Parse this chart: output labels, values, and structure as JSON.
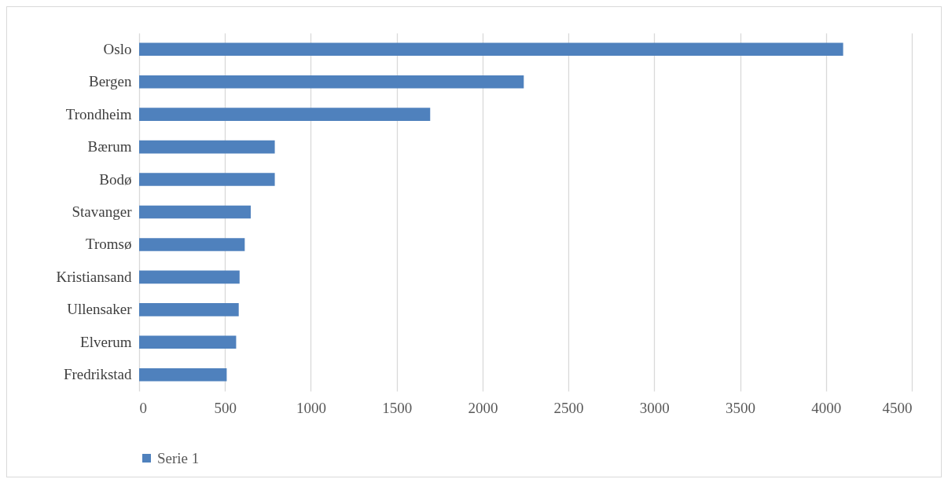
{
  "chart_data": {
    "type": "bar",
    "orientation": "horizontal",
    "categories": [
      "Oslo",
      "Bergen",
      "Trondheim",
      "Bærum",
      "Bodø",
      "Stavanger",
      "Tromsø",
      "Kristiansand",
      "Ullensaker",
      "Elverum",
      "Fredrikstad"
    ],
    "series": [
      {
        "name": "Serie 1",
        "color": "#4f81bd",
        "values": [
          4100,
          2240,
          1695,
          790,
          790,
          650,
          615,
          585,
          580,
          565,
          510
        ]
      }
    ],
    "xlim": [
      0,
      4500
    ],
    "xticks": [
      0,
      500,
      1000,
      1500,
      2000,
      2500,
      3000,
      3500,
      4000,
      4500
    ],
    "grid": "x",
    "legend": "bottom"
  }
}
